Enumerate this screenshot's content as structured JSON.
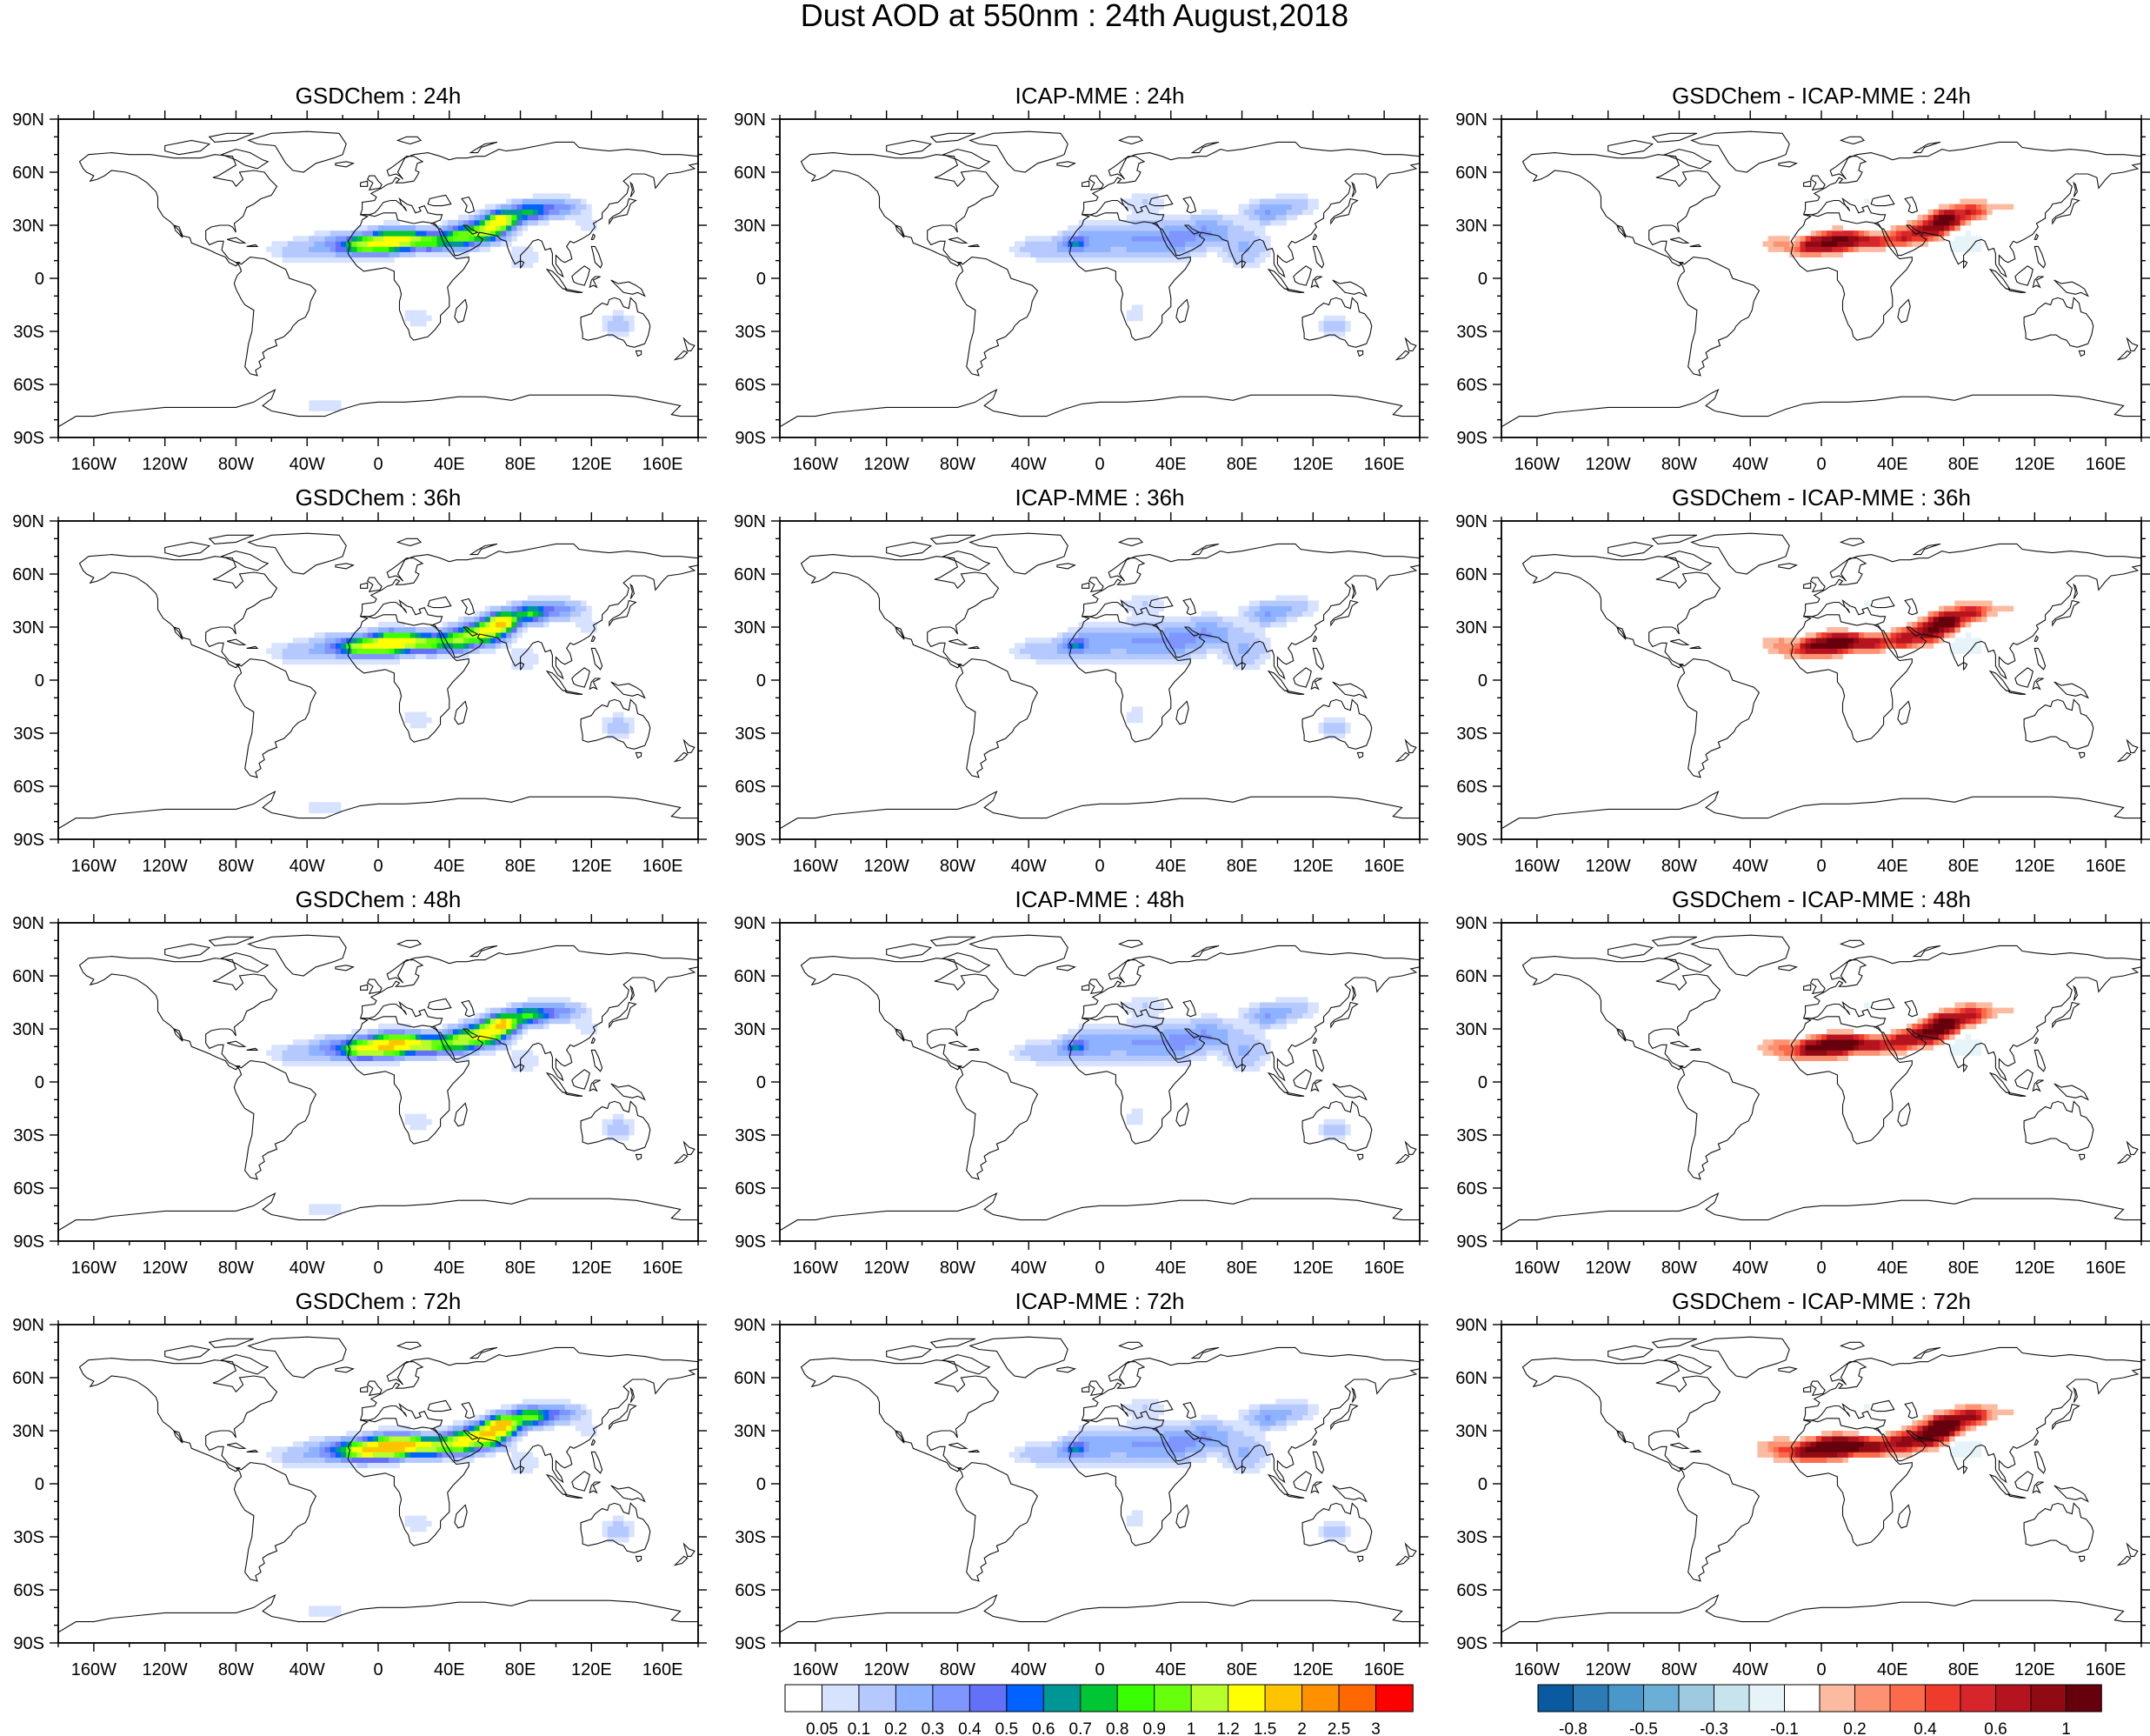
{
  "title": "Dust AOD at 550nm : 24th August,2018",
  "panels": [
    {
      "title": "GSDChem : 24h",
      "field": "model",
      "lead": 24
    },
    {
      "title": "ICAP-MME : 24h",
      "field": "icap",
      "lead": 24
    },
    {
      "title": "GSDChem - ICAP-MME : 24h",
      "field": "diff",
      "lead": 24
    },
    {
      "title": "GSDChem : 36h",
      "field": "model",
      "lead": 36
    },
    {
      "title": "ICAP-MME : 36h",
      "field": "icap",
      "lead": 36
    },
    {
      "title": "GSDChem - ICAP-MME : 36h",
      "field": "diff",
      "lead": 36
    },
    {
      "title": "GSDChem : 48h",
      "field": "model",
      "lead": 48
    },
    {
      "title": "ICAP-MME : 48h",
      "field": "icap",
      "lead": 48
    },
    {
      "title": "GSDChem - ICAP-MME : 48h",
      "field": "diff",
      "lead": 48
    },
    {
      "title": "GSDChem : 72h",
      "field": "model",
      "lead": 72
    },
    {
      "title": "ICAP-MME : 72h",
      "field": "icap",
      "lead": 72
    },
    {
      "title": "GSDChem - ICAP-MME : 72h",
      "field": "diff",
      "lead": 72
    }
  ],
  "axes": {
    "lat_ticks": [
      90,
      60,
      30,
      0,
      -30,
      -60,
      -90
    ],
    "lat_labels": [
      "90N",
      "60N",
      "30N",
      "0",
      "30S",
      "60S",
      "90S"
    ],
    "lon_ticks": [
      -160,
      -120,
      -80,
      -40,
      0,
      40,
      80,
      120,
      160
    ],
    "lon_labels": [
      "160W",
      "120W",
      "80W",
      "40W",
      "0",
      "40E",
      "80E",
      "120E",
      "160E"
    ],
    "lon_range": [
      -180,
      180
    ],
    "lat_range": [
      -90,
      90
    ]
  },
  "colorbars": {
    "aod": {
      "labels": [
        "0.05",
        "0.1",
        "0.2",
        "0.3",
        "0.4",
        "0.5",
        "0.6",
        "0.7",
        "0.8",
        "0.9",
        "1",
        "1.2",
        "1.5",
        "2",
        "2.5",
        "3"
      ],
      "colors": [
        "#ffffff",
        "#d6e2ff",
        "#b5c9ff",
        "#8eb2ff",
        "#7f96ff",
        "#6370f8",
        "#0063ff",
        "#009696",
        "#00c633",
        "#39ff03",
        "#67ff0c",
        "#b6ff2b",
        "#ffff00",
        "#ffc400",
        "#ff9000",
        "#ff6800",
        "#ff0000"
      ]
    },
    "diff": {
      "labels": [
        "-0.8",
        "-0.5",
        "-0.3",
        "-0.1",
        "0.2",
        "0.4",
        "0.6",
        "1"
      ],
      "colors": [
        "#0a5aa0",
        "#2c7bb6",
        "#4a98c9",
        "#6baed6",
        "#9ecae1",
        "#c6e3ee",
        "#e6f4f9",
        "#ffffff",
        "#fcbba1",
        "#fc9272",
        "#fb6a4a",
        "#ef3b2c",
        "#d7262b",
        "#b5141e",
        "#8f0a13",
        "#67000d"
      ]
    }
  }
}
